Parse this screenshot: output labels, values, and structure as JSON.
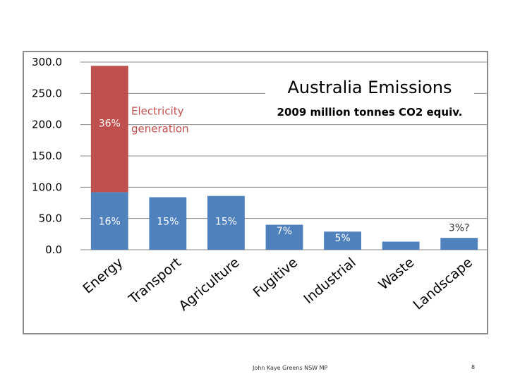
{
  "chart_data": {
    "type": "bar",
    "title": "Australia Emissions",
    "subtitle": "2009 million tonnes CO2 equiv.",
    "xlabel": "",
    "ylabel": "",
    "ylim": [
      0,
      300
    ],
    "yticks": [
      "300.0",
      "250.0",
      "200.0",
      "150.0",
      "100.0",
      "50.0",
      "0.0"
    ],
    "grid": true,
    "categories": [
      "Energy",
      "Transport",
      "Agriculture",
      "Fugitive",
      "Industrial",
      "Waste",
      "Landscape"
    ],
    "series": [
      {
        "values": [
          92,
          84,
          86,
          40,
          29,
          13,
          19
        ],
        "color": "#4f81bd"
      },
      {
        "values": [
          202,
          0,
          0,
          0,
          0,
          0,
          0
        ],
        "color": "#c0504d"
      }
    ],
    "annotations": {
      "segment_percents": [
        "16%",
        "15%",
        "15%",
        "7%",
        "5%",
        "",
        "3%?"
      ],
      "stack_percent": "36%",
      "stack_label_line1": "Electricity",
      "stack_label_line2": "generation"
    },
    "colors": {
      "bar_base": "#4f81bd",
      "bar_stack": "#c0504d",
      "label_on_bar": "#ffffff",
      "label_dark": "#333333",
      "stack_label": "#c0504d",
      "grid": "#8c8c8c"
    }
  },
  "footer": {
    "credit": "John Kaye Greens NSW MP",
    "page": "8"
  }
}
